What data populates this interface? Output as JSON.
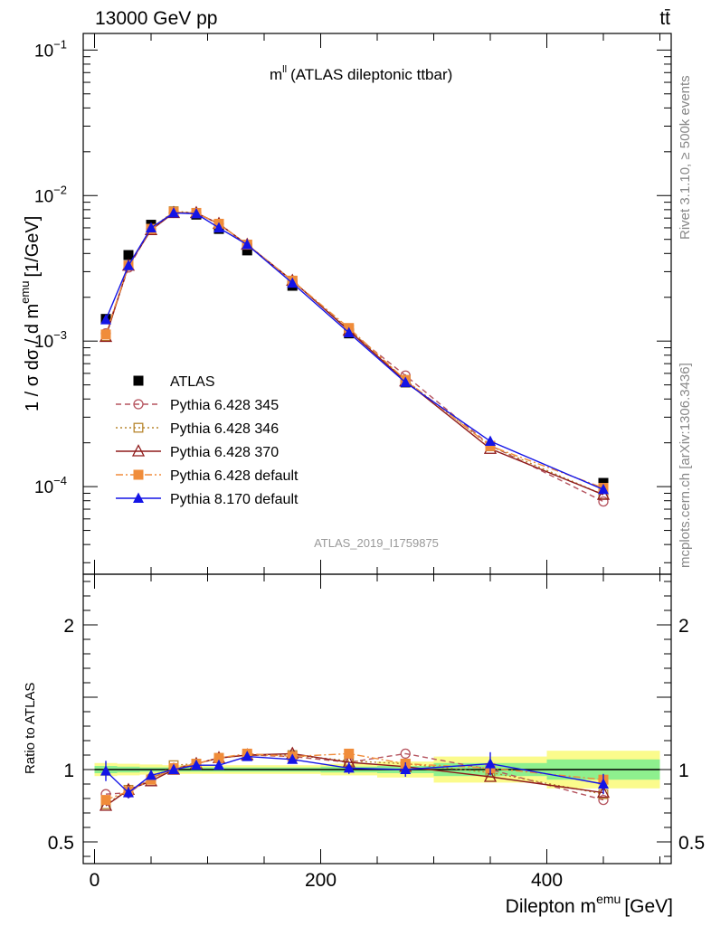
{
  "header": {
    "left": "13000 GeV pp",
    "right": "tt̄"
  },
  "side_labels": {
    "top": "Rivet 3.1.10, ≥ 500k events",
    "bottom": "mcplots.cern.ch [arXiv:1306.3436]"
  },
  "chart_data": [
    {
      "type": "scatter",
      "panel": "main",
      "title": "m",
      "title_sup": "ll",
      "subtitle": "(ATLAS dileptonic ttbar)",
      "watermark": "ATLAS_2019_I1759875",
      "ylabel": "1 / σ  dσ / d m",
      "ylabel_sup": "emu",
      "ylabel_unit": "[1/GeV]",
      "yscale": "log",
      "ylim": [
        2.5e-05,
        0.13
      ],
      "xlim": [
        -10,
        510
      ],
      "y_ticks": [
        {
          "v": 0.1,
          "base": "10",
          "exp": "−1"
        },
        {
          "v": 0.01,
          "base": "10",
          "exp": "−2"
        },
        {
          "v": 0.001,
          "base": "10",
          "exp": "−3"
        },
        {
          "v": 0.0001,
          "base": "10",
          "exp": "−4"
        }
      ],
      "legend_position": "center-left",
      "x": [
        10,
        30,
        50,
        70,
        90,
        110,
        135,
        175,
        225,
        275,
        350,
        450
      ],
      "series": [
        {
          "name": "ATLAS",
          "color": "#000000",
          "marker": "square",
          "line": "none",
          "values": [
            0.00142,
            0.0039,
            0.0063,
            0.0076,
            0.0074,
            0.0059,
            0.0042,
            0.0024,
            0.00113,
            0.00052,
            0.00019,
            0.000106
          ]
        },
        {
          "name": "Pythia 6.428 345",
          "color": "#b5535e",
          "marker": "circle-open",
          "line": "dash",
          "values": [
            0.00113,
            0.0032,
            0.0059,
            0.0076,
            0.0076,
            0.0064,
            0.0046,
            0.0026,
            0.00118,
            0.00058,
            0.000192,
            7.9e-05
          ]
        },
        {
          "name": "Pythia 6.428 346",
          "color": "#b8862e",
          "marker": "square-open",
          "line": "dot",
          "values": [
            0.00108,
            0.0033,
            0.0059,
            0.0078,
            0.0076,
            0.0064,
            0.0046,
            0.0026,
            0.0012,
            0.00054,
            0.00019,
            8.8e-05
          ]
        },
        {
          "name": "Pythia 6.428 370",
          "color": "#8f1b1b",
          "marker": "triangle-open",
          "line": "solid",
          "values": [
            0.00107,
            0.0033,
            0.0058,
            0.0076,
            0.0076,
            0.0064,
            0.0046,
            0.0026,
            0.00118,
            0.00053,
            0.000182,
            8.8e-05
          ]
        },
        {
          "name": "Pythia 6.428 default",
          "color": "#f08c3a",
          "marker": "square",
          "line": "dashdot",
          "values": [
            0.00111,
            0.0033,
            0.0059,
            0.0077,
            0.0076,
            0.0064,
            0.0046,
            0.0026,
            0.00123,
            0.00054,
            0.00019,
            9.8e-05
          ]
        },
        {
          "name": "Pythia 8.170 default",
          "color": "#1414e6",
          "marker": "triangle",
          "line": "solid",
          "values": [
            0.0014,
            0.0033,
            0.006,
            0.0076,
            0.0075,
            0.006,
            0.0046,
            0.0025,
            0.00114,
            0.00052,
            0.000205,
            9.55e-05
          ]
        }
      ]
    },
    {
      "type": "scatter",
      "panel": "ratio",
      "ylabel": "Ratio to ATLAS",
      "xlabel": "Dilepton m",
      "xlabel_sup": "emu",
      "xlabel_unit": "[GeV]",
      "ylim": [
        0.35,
        2.35
      ],
      "xlim": [
        -10,
        510
      ],
      "y_ticks": [
        {
          "v": 0.5,
          "label": "0.5"
        },
        {
          "v": 1,
          "label": "1"
        },
        {
          "v": 2,
          "label": "2"
        }
      ],
      "x_ticks": [
        {
          "v": 0,
          "label": "0"
        },
        {
          "v": 200,
          "label": "200"
        },
        {
          "v": 400,
          "label": "400"
        }
      ],
      "bins": [
        {
          "lo": 0,
          "hi": 20,
          "stat": 0.025,
          "total": 0.045
        },
        {
          "lo": 20,
          "hi": 40,
          "stat": 0.02,
          "total": 0.04
        },
        {
          "lo": 40,
          "hi": 60,
          "stat": 0.015,
          "total": 0.035
        },
        {
          "lo": 60,
          "hi": 80,
          "stat": 0.015,
          "total": 0.03
        },
        {
          "lo": 80,
          "hi": 100,
          "stat": 0.015,
          "total": 0.03
        },
        {
          "lo": 100,
          "hi": 120,
          "stat": 0.015,
          "total": 0.03
        },
        {
          "lo": 120,
          "hi": 150,
          "stat": 0.015,
          "total": 0.03
        },
        {
          "lo": 150,
          "hi": 200,
          "stat": 0.015,
          "total": 0.03
        },
        {
          "lo": 200,
          "hi": 250,
          "stat": 0.02,
          "total": 0.04
        },
        {
          "lo": 250,
          "hi": 300,
          "stat": 0.025,
          "total": 0.055
        },
        {
          "lo": 300,
          "hi": 400,
          "stat": 0.045,
          "total": 0.09
        },
        {
          "lo": 400,
          "hi": 500,
          "stat": 0.07,
          "total": 0.13
        }
      ],
      "x": [
        10,
        30,
        50,
        70,
        90,
        110,
        135,
        175,
        225,
        275,
        350,
        450
      ],
      "series": [
        {
          "name": "Pythia 6.428 345",
          "color": "#b5535e",
          "marker": "circle-open",
          "line": "dash",
          "values": [
            0.83,
            0.84,
            0.94,
            1.01,
            1.04,
            1.08,
            1.1,
            1.09,
            1.05,
            1.11,
            1.0,
            0.79
          ]
        },
        {
          "name": "Pythia 6.428 346",
          "color": "#b8862e",
          "marker": "square-open",
          "line": "dot",
          "values": [
            0.76,
            0.86,
            0.93,
            1.03,
            1.04,
            1.08,
            1.1,
            1.1,
            1.06,
            1.04,
            0.98,
            0.83
          ]
        },
        {
          "name": "Pythia 6.428 370",
          "color": "#8f1b1b",
          "marker": "triangle-open",
          "line": "solid",
          "values": [
            0.75,
            0.86,
            0.92,
            1.0,
            1.04,
            1.08,
            1.1,
            1.11,
            1.05,
            1.02,
            0.95,
            0.84
          ]
        },
        {
          "name": "Pythia 6.428 default",
          "color": "#f08c3a",
          "marker": "square",
          "line": "dashdot",
          "values": [
            0.79,
            0.85,
            0.93,
            1.01,
            1.04,
            1.08,
            1.11,
            1.09,
            1.11,
            1.04,
            1.01,
            0.93
          ]
        },
        {
          "name": "Pythia 8.170 default",
          "color": "#1414e6",
          "marker": "triangle",
          "line": "solid",
          "values": [
            0.99,
            0.84,
            0.96,
            1.0,
            1.03,
            1.03,
            1.09,
            1.07,
            1.01,
            1.0,
            1.04,
            0.9
          ],
          "err": [
            0.07,
            0.04,
            0.02,
            0.02,
            0.02,
            0.02,
            0.02,
            0.02,
            0.04,
            0.05,
            0.08,
            0.07
          ]
        }
      ]
    }
  ]
}
